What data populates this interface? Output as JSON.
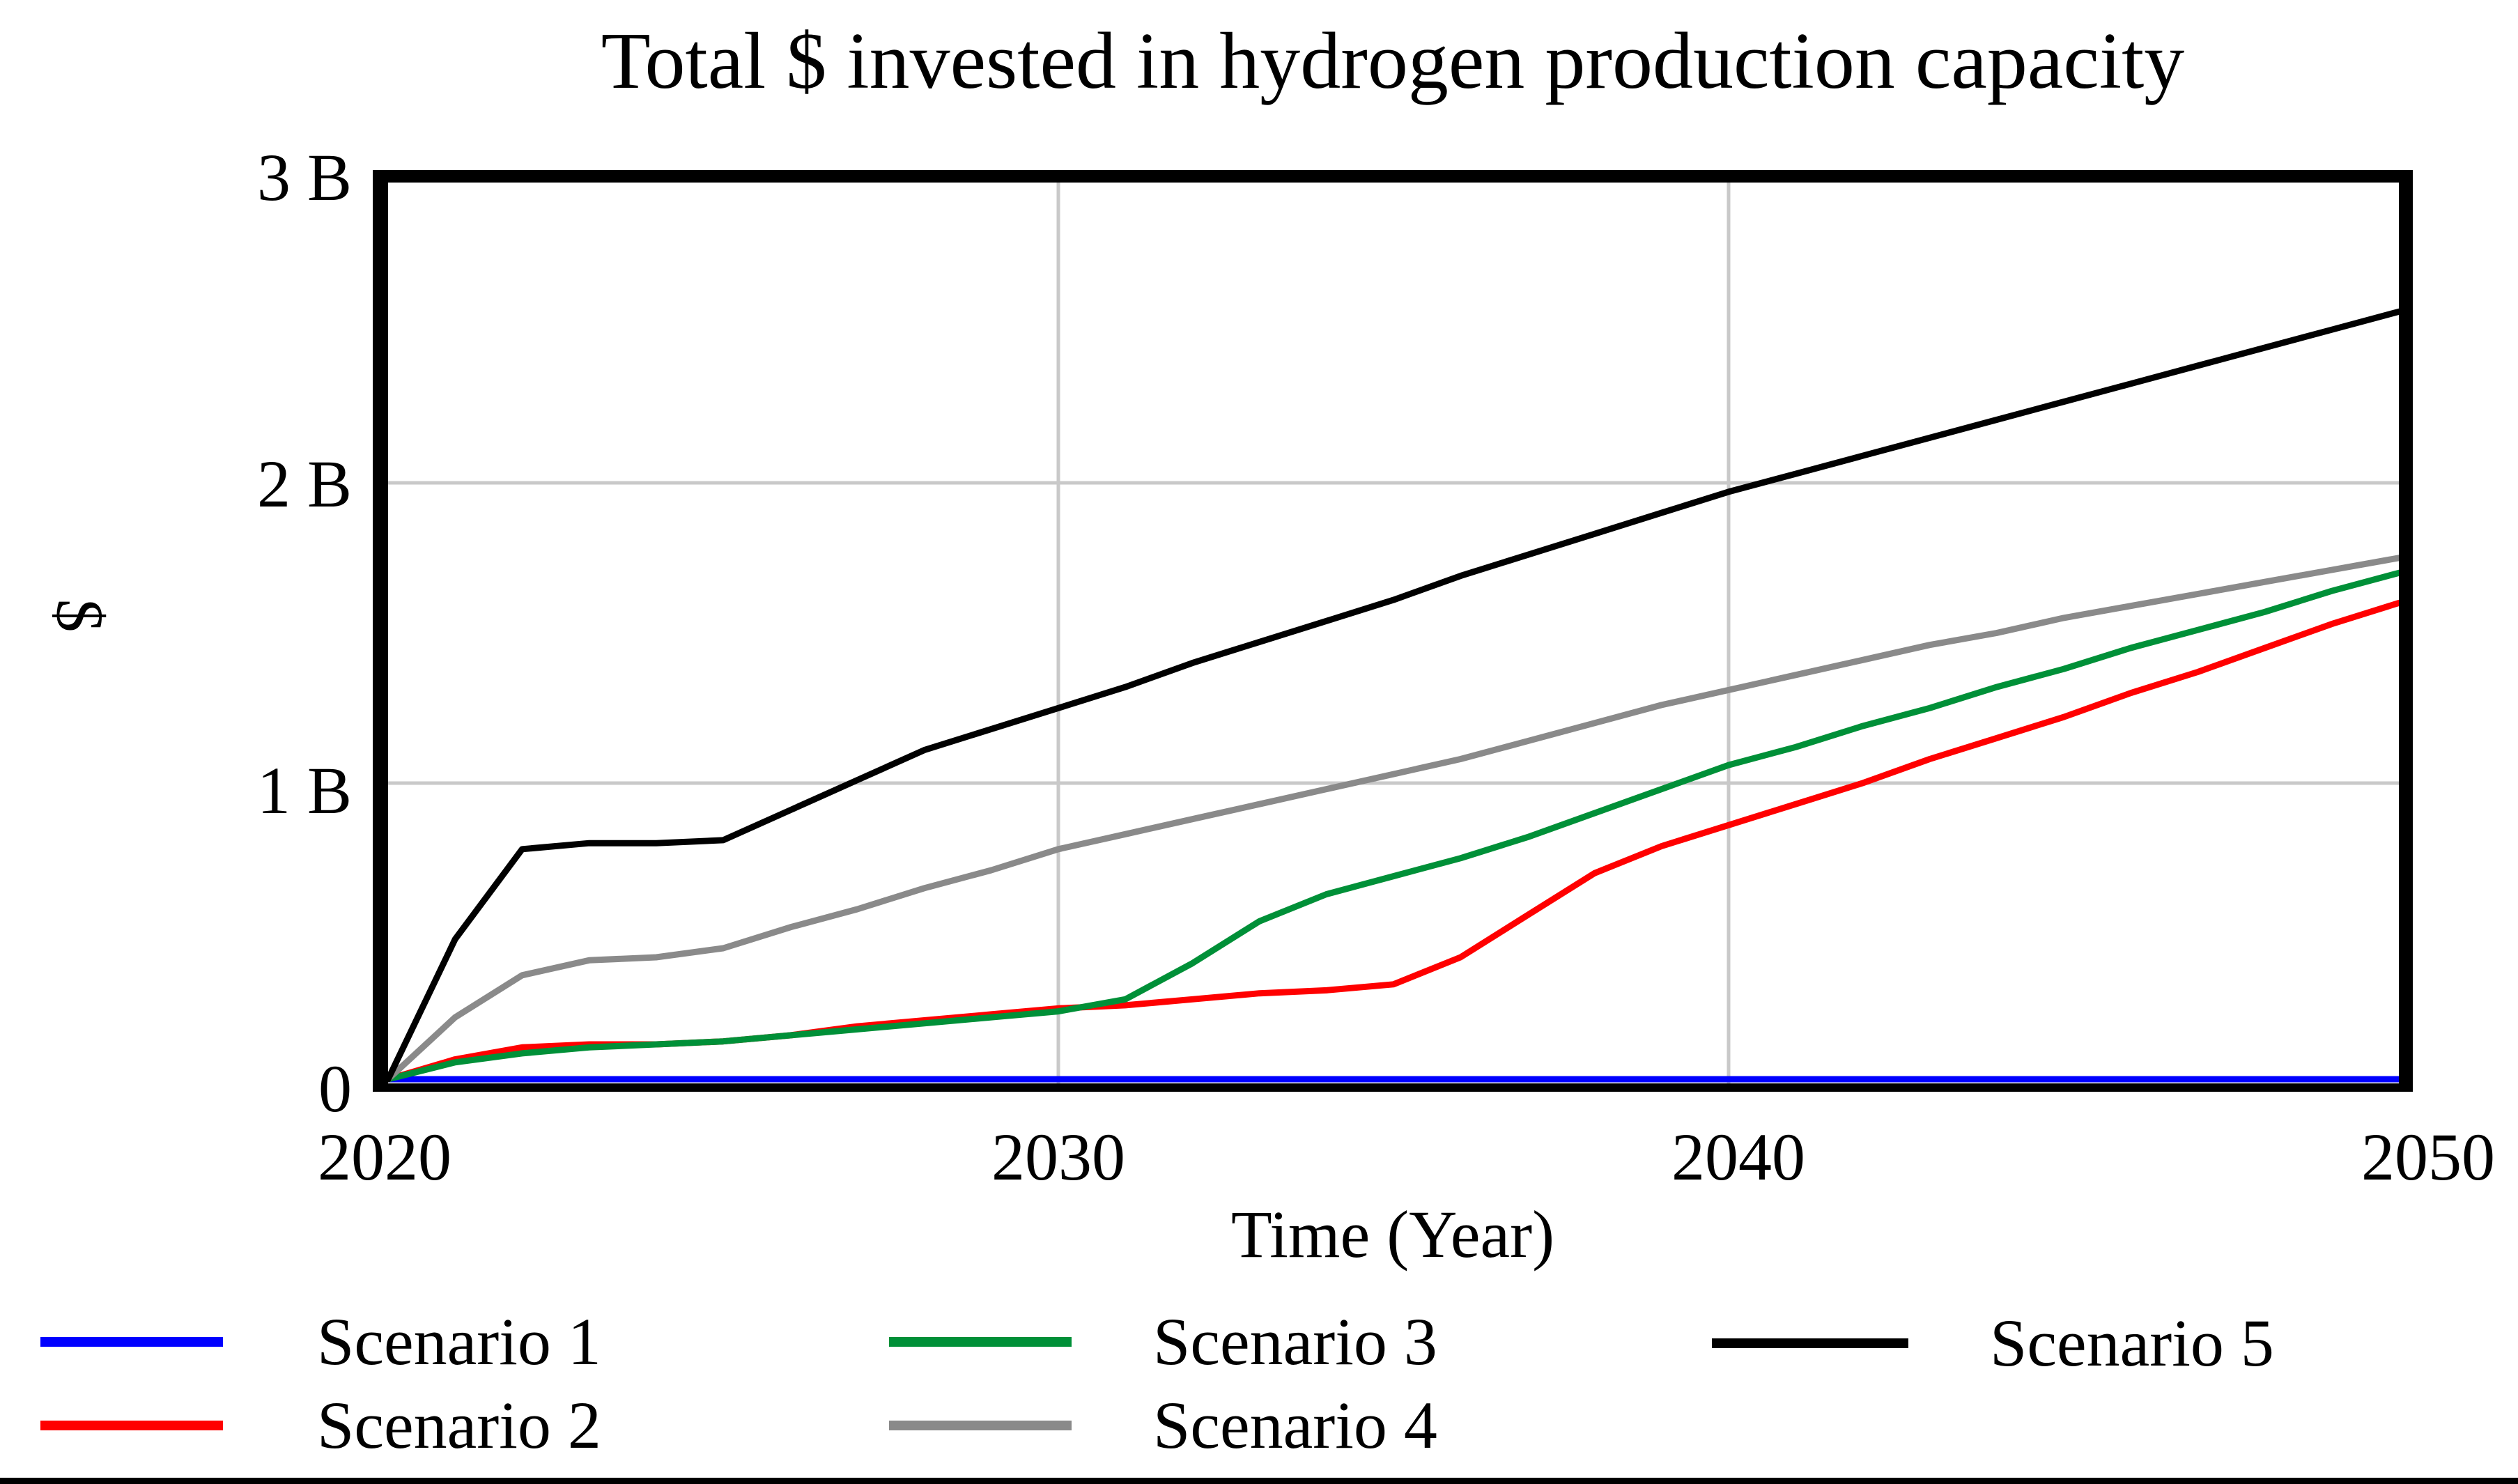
{
  "title": "Total $ invested in hydrogen production capacity",
  "colors": {
    "gridline": "#c9c9c9",
    "frame": "#000000",
    "background": "#ffffff"
  },
  "chart_data": {
    "type": "line",
    "title": "Total $ invested in hydrogen production capacity",
    "xlabel": "Time (Year)",
    "ylabel": "$",
    "y_unit": "B (billions of $)",
    "xlim": [
      2020,
      2050
    ],
    "ylim": [
      0,
      3
    ],
    "grid": true,
    "legend_position": "bottom",
    "x_ticks": [
      {
        "value": 2020,
        "label": "2020"
      },
      {
        "value": 2030,
        "label": "2030"
      },
      {
        "value": 2040,
        "label": "2040"
      },
      {
        "value": 2050,
        "label": "2050"
      }
    ],
    "y_ticks": [
      {
        "value": 0,
        "label": "0"
      },
      {
        "value": 1,
        "label": "1 B"
      },
      {
        "value": 2,
        "label": "2 B"
      },
      {
        "value": 3,
        "label": "3 B"
      }
    ],
    "x": [
      2020,
      2021,
      2022,
      2023,
      2024,
      2025,
      2026,
      2027,
      2028,
      2029,
      2030,
      2031,
      2032,
      2033,
      2034,
      2035,
      2036,
      2037,
      2038,
      2039,
      2040,
      2041,
      2042,
      2043,
      2044,
      2045,
      2046,
      2047,
      2048,
      2049,
      2050
    ],
    "series": [
      {
        "name": "Scenario 1",
        "color": "#0000ff",
        "values": [
          0,
          0,
          0,
          0,
          0,
          0,
          0,
          0,
          0,
          0,
          0,
          0,
          0,
          0,
          0,
          0,
          0,
          0,
          0,
          0,
          0,
          0,
          0,
          0,
          0,
          0,
          0,
          0,
          0,
          0,
          0
        ]
      },
      {
        "name": "Scenario 2",
        "color": "#ff0000",
        "values": [
          0,
          0.08,
          0.12,
          0.13,
          0.13,
          0.14,
          0.16,
          0.19,
          0.21,
          0.23,
          0.25,
          0.26,
          0.28,
          0.3,
          0.31,
          0.33,
          0.42,
          0.56,
          0.7,
          0.79,
          0.86,
          0.93,
          1.0,
          1.08,
          1.15,
          1.22,
          1.3,
          1.37,
          1.45,
          1.53,
          1.6
        ]
      },
      {
        "name": "Scenario 3",
        "color": "#009038",
        "values": [
          0,
          0.07,
          0.1,
          0.12,
          0.13,
          0.14,
          0.16,
          0.18,
          0.2,
          0.22,
          0.24,
          0.28,
          0.4,
          0.54,
          0.63,
          0.69,
          0.75,
          0.82,
          0.9,
          0.98,
          1.06,
          1.12,
          1.19,
          1.25,
          1.32,
          1.38,
          1.45,
          1.51,
          1.57,
          1.64,
          1.7
        ]
      },
      {
        "name": "Scenario 4",
        "color": "#8a8a8a",
        "values": [
          0,
          0.22,
          0.36,
          0.41,
          0.42,
          0.45,
          0.52,
          0.58,
          0.65,
          0.71,
          0.78,
          0.83,
          0.88,
          0.93,
          0.98,
          1.03,
          1.08,
          1.14,
          1.2,
          1.26,
          1.31,
          1.36,
          1.41,
          1.46,
          1.5,
          1.55,
          1.59,
          1.63,
          1.67,
          1.71,
          1.75
        ]
      },
      {
        "name": "Scenario 5",
        "color": "#000000",
        "values": [
          0,
          0.48,
          0.78,
          0.8,
          0.8,
          0.81,
          0.91,
          1.01,
          1.11,
          1.18,
          1.25,
          1.32,
          1.4,
          1.47,
          1.54,
          1.61,
          1.69,
          1.76,
          1.83,
          1.9,
          1.97,
          2.03,
          2.09,
          2.15,
          2.21,
          2.27,
          2.33,
          2.39,
          2.45,
          2.51,
          2.57
        ]
      }
    ]
  }
}
